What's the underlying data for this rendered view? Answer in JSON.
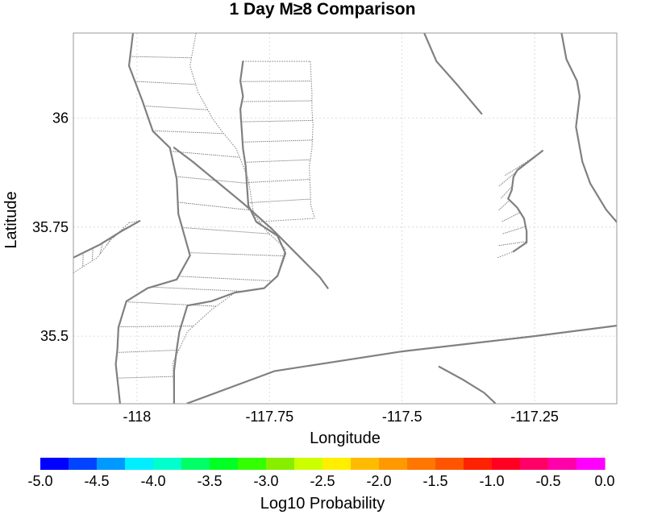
{
  "chart_data": {
    "type": "map",
    "title": "1 Day M≥8 Comparison",
    "xlabel": "Longitude",
    "ylabel": "Latitude",
    "xlim": [
      -118.12,
      -117.095
    ],
    "ylim": [
      35.345,
      36.195
    ],
    "xticks": [
      -118,
      -117.75,
      -117.5,
      -117.25
    ],
    "xtick_labels": [
      "-118",
      "-117.75",
      "-117.5",
      "-117.25"
    ],
    "yticks": [
      35.5,
      35.75,
      36
    ],
    "ytick_labels": [
      "35.5",
      "35.75",
      "36"
    ],
    "grid": true,
    "faults": [
      {
        "name": "fault-west-trace",
        "points": [
          [
            -118.007,
            36.2
          ],
          [
            -118.015,
            36.12
          ],
          [
            -117.99,
            36.04
          ],
          [
            -117.97,
            35.97
          ],
          [
            -117.938,
            35.932
          ],
          [
            -117.925,
            35.86
          ],
          [
            -117.922,
            35.78
          ],
          [
            -117.9,
            35.685
          ],
          [
            -117.925,
            35.63
          ],
          [
            -117.98,
            35.61
          ],
          [
            -118.02,
            35.58
          ],
          [
            -118.035,
            35.52
          ],
          [
            -118.037,
            35.47
          ],
          [
            -118.04,
            35.435
          ],
          [
            -118.035,
            35.38
          ],
          [
            -118.032,
            35.345
          ]
        ]
      },
      {
        "name": "fault-central-trace",
        "points": [
          [
            -117.8,
            36.13
          ],
          [
            -117.805,
            36.085
          ],
          [
            -117.8,
            36.05
          ],
          [
            -117.805,
            36.02
          ],
          [
            -117.803,
            35.985
          ],
          [
            -117.8,
            35.93
          ],
          [
            -117.795,
            35.89
          ],
          [
            -117.79,
            35.8
          ],
          [
            -117.775,
            35.762
          ],
          [
            -117.735,
            35.73
          ],
          [
            -117.72,
            35.69
          ],
          [
            -117.735,
            35.638
          ],
          [
            -117.76,
            35.61
          ],
          [
            -117.815,
            35.6
          ],
          [
            -117.86,
            35.58
          ],
          [
            -117.905,
            35.57
          ],
          [
            -117.92,
            35.51
          ],
          [
            -117.925,
            35.47
          ],
          [
            -117.93,
            35.42
          ],
          [
            -117.93,
            35.345
          ]
        ]
      },
      {
        "name": "fault-diagonal-west",
        "points": [
          [
            -117.93,
            35.932
          ],
          [
            -117.895,
            35.9
          ],
          [
            -117.86,
            35.865
          ],
          [
            -117.8,
            35.805
          ],
          [
            -117.745,
            35.745
          ],
          [
            -117.7,
            35.69
          ],
          [
            -117.655,
            35.635
          ],
          [
            -117.64,
            35.61
          ]
        ]
      },
      {
        "name": "fault-ne-long",
        "points": [
          [
            -117.46,
            36.2
          ],
          [
            -117.435,
            36.13
          ],
          [
            -117.395,
            36.075
          ],
          [
            -117.35,
            36.01
          ]
        ]
      },
      {
        "name": "fault-east-trace",
        "points": [
          [
            -117.2,
            36.2
          ],
          [
            -117.19,
            36.135
          ],
          [
            -117.17,
            36.085
          ],
          [
            -117.165,
            36.05
          ],
          [
            -117.172,
            35.98
          ],
          [
            -117.16,
            35.9
          ],
          [
            -117.145,
            35.85
          ],
          [
            -117.115,
            35.79
          ],
          [
            -117.08,
            35.74
          ]
        ]
      },
      {
        "name": "fault-east-segment",
        "points": [
          [
            -117.235,
            35.925
          ],
          [
            -117.283,
            35.88
          ],
          [
            -117.29,
            35.865
          ],
          [
            -117.293,
            35.835
          ],
          [
            -117.3,
            35.815
          ],
          [
            -117.283,
            35.795
          ],
          [
            -117.27,
            35.77
          ],
          [
            -117.265,
            35.74
          ],
          [
            -117.265,
            35.715
          ],
          [
            -117.29,
            35.694
          ]
        ]
      },
      {
        "name": "fault-garlock",
        "points": [
          [
            -117.905,
            35.346
          ],
          [
            -117.74,
            35.42
          ],
          [
            -117.5,
            35.465
          ],
          [
            -117.25,
            35.5
          ],
          [
            -117.095,
            35.524
          ]
        ]
      },
      {
        "name": "fault-southeast",
        "points": [
          [
            -117.43,
            35.43
          ],
          [
            -117.385,
            35.4
          ],
          [
            -117.345,
            35.37
          ],
          [
            -117.325,
            35.347
          ]
        ]
      },
      {
        "name": "fault-west-short",
        "points": [
          [
            -118.12,
            35.68
          ],
          [
            -118.07,
            35.71
          ],
          [
            -118.03,
            35.74
          ],
          [
            -117.995,
            35.764
          ]
        ]
      }
    ],
    "ladders": [
      {
        "name": "ladder-west",
        "left": [
          [
            -118.007,
            36.2
          ],
          [
            -118.015,
            36.12
          ],
          [
            -117.99,
            36.04
          ],
          [
            -117.97,
            35.97
          ],
          [
            -117.938,
            35.932
          ],
          [
            -117.925,
            35.86
          ],
          [
            -117.922,
            35.78
          ],
          [
            -117.9,
            35.685
          ],
          [
            -117.925,
            35.63
          ],
          [
            -117.98,
            35.61
          ],
          [
            -118.02,
            35.58
          ],
          [
            -118.035,
            35.52
          ],
          [
            -118.037,
            35.47
          ],
          [
            -118.04,
            35.435
          ],
          [
            -118.035,
            35.38
          ],
          [
            -118.032,
            35.345
          ]
        ],
        "right": [
          [
            -117.888,
            36.2
          ],
          [
            -117.9,
            36.12
          ],
          [
            -117.885,
            36.06
          ],
          [
            -117.858,
            36.0
          ],
          [
            -117.84,
            35.97
          ],
          [
            -117.813,
            35.93
          ],
          [
            -117.79,
            35.86
          ],
          [
            -117.78,
            35.78
          ],
          [
            -117.755,
            35.74
          ],
          [
            -117.72,
            35.7
          ],
          [
            -117.735,
            35.64
          ],
          [
            -117.76,
            35.61
          ],
          [
            -117.815,
            35.6
          ],
          [
            -117.86,
            35.56
          ],
          [
            -117.905,
            35.51
          ],
          [
            -117.932,
            35.44
          ],
          [
            -117.93,
            35.345
          ]
        ],
        "rungs": 15
      },
      {
        "name": "ladder-central",
        "left": [
          [
            -117.8,
            36.13
          ],
          [
            -117.805,
            36.085
          ],
          [
            -117.8,
            36.05
          ],
          [
            -117.805,
            36.02
          ],
          [
            -117.803,
            35.985
          ],
          [
            -117.8,
            35.93
          ],
          [
            -117.795,
            35.89
          ],
          [
            -117.79,
            35.8
          ],
          [
            -117.775,
            35.762
          ]
        ],
        "right": [
          [
            -117.673,
            36.13
          ],
          [
            -117.67,
            36.06
          ],
          [
            -117.67,
            36.02
          ],
          [
            -117.668,
            35.985
          ],
          [
            -117.67,
            35.93
          ],
          [
            -117.675,
            35.89
          ],
          [
            -117.672,
            35.8
          ],
          [
            -117.665,
            35.77
          ]
        ],
        "rungs": 7
      },
      {
        "name": "ladder-east",
        "left": [
          [
            -117.283,
            35.885
          ],
          [
            -117.305,
            35.87
          ],
          [
            -117.318,
            35.85
          ],
          [
            -117.313,
            35.82
          ],
          [
            -117.315,
            35.795
          ],
          [
            -117.32,
            35.783
          ],
          [
            -117.31,
            35.76
          ],
          [
            -117.31,
            35.73
          ],
          [
            -117.32,
            35.7
          ],
          [
            -117.32,
            35.68
          ]
        ],
        "right": [
          [
            -117.235,
            35.925
          ],
          [
            -117.283,
            35.88
          ],
          [
            -117.29,
            35.865
          ],
          [
            -117.293,
            35.835
          ],
          [
            -117.3,
            35.815
          ],
          [
            -117.283,
            35.795
          ],
          [
            -117.27,
            35.77
          ],
          [
            -117.265,
            35.74
          ],
          [
            -117.265,
            35.715
          ],
          [
            -117.29,
            35.694
          ]
        ],
        "rungs": 7
      },
      {
        "name": "ladder-west-short",
        "left": [
          [
            -118.12,
            35.68
          ],
          [
            -118.07,
            35.71
          ],
          [
            -118.03,
            35.74
          ],
          [
            -117.995,
            35.764
          ]
        ],
        "right": [
          [
            -118.12,
            35.645
          ],
          [
            -118.075,
            35.68
          ],
          [
            -118.05,
            35.72
          ],
          [
            -118.015,
            35.76
          ]
        ],
        "rungs": 6
      }
    ],
    "colorbar": {
      "label": "Log10 Probability",
      "range": [
        -5.0,
        0.0
      ],
      "tick_values": [
        -5.0,
        -4.5,
        -4.0,
        -3.5,
        -3.0,
        -2.5,
        -2.0,
        -1.5,
        -1.0,
        -0.5,
        0.0
      ],
      "tick_labels": [
        "-5.0",
        "-4.5",
        "-4.0",
        "-3.5",
        "-3.0",
        "-2.5",
        "-2.0",
        "-1.5",
        "-1.0",
        "-0.5",
        "0.0"
      ],
      "colors": [
        "#0000ff",
        "#0044ff",
        "#0099ff",
        "#00eeff",
        "#00ffcc",
        "#00ff66",
        "#00ff22",
        "#33ff00",
        "#88ee00",
        "#ccff00",
        "#ffee00",
        "#ffbb00",
        "#ff9900",
        "#ff7700",
        "#ff5500",
        "#ff2200",
        "#ff0022",
        "#ff0066",
        "#ff00aa",
        "#ff00ff"
      ]
    }
  }
}
